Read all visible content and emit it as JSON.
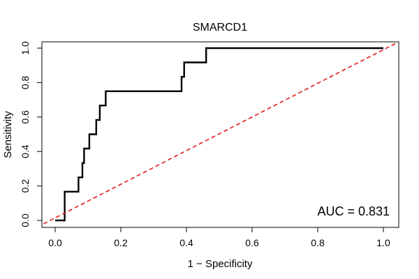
{
  "chart_data": {
    "type": "line",
    "title": "SMARCD1",
    "xlabel": "1 − Specificity",
    "ylabel": "Sensitivity",
    "xlim": [
      0.0,
      1.0
    ],
    "ylim": [
      0.0,
      1.0
    ],
    "xticks": [
      0.0,
      0.2,
      0.4,
      0.6,
      0.8,
      1.0
    ],
    "xtick_labels": [
      "0.0",
      "0.2",
      "0.4",
      "0.6",
      "0.8",
      "1.0"
    ],
    "yticks": [
      0.0,
      0.2,
      0.4,
      0.6,
      0.8,
      1.0
    ],
    "ytick_labels": [
      "0.0",
      "0.2",
      "0.4",
      "0.6",
      "0.8",
      "1.0"
    ],
    "grid": false,
    "series": [
      {
        "name": "ROC curve",
        "color": "#000000",
        "style": "solid",
        "points": [
          [
            0.0,
            0.0
          ],
          [
            0.029,
            0.0
          ],
          [
            0.029,
            0.167
          ],
          [
            0.071,
            0.167
          ],
          [
            0.071,
            0.25
          ],
          [
            0.083,
            0.25
          ],
          [
            0.083,
            0.333
          ],
          [
            0.088,
            0.333
          ],
          [
            0.088,
            0.417
          ],
          [
            0.104,
            0.417
          ],
          [
            0.104,
            0.5
          ],
          [
            0.125,
            0.5
          ],
          [
            0.125,
            0.583
          ],
          [
            0.136,
            0.583
          ],
          [
            0.136,
            0.667
          ],
          [
            0.154,
            0.667
          ],
          [
            0.154,
            0.75
          ],
          [
            0.385,
            0.75
          ],
          [
            0.385,
            0.833
          ],
          [
            0.393,
            0.833
          ],
          [
            0.393,
            0.917
          ],
          [
            0.46,
            0.917
          ],
          [
            0.46,
            1.0
          ],
          [
            1.0,
            1.0
          ]
        ]
      },
      {
        "name": "Reference diagonal",
        "color": "#e41a1c",
        "style": "dashed",
        "points": [
          [
            -0.035,
            -0.02
          ],
          [
            1.04,
            1.03
          ]
        ]
      }
    ],
    "annotations": [
      {
        "text": "AUC = 0.831",
        "position": "bottom-right"
      }
    ]
  }
}
